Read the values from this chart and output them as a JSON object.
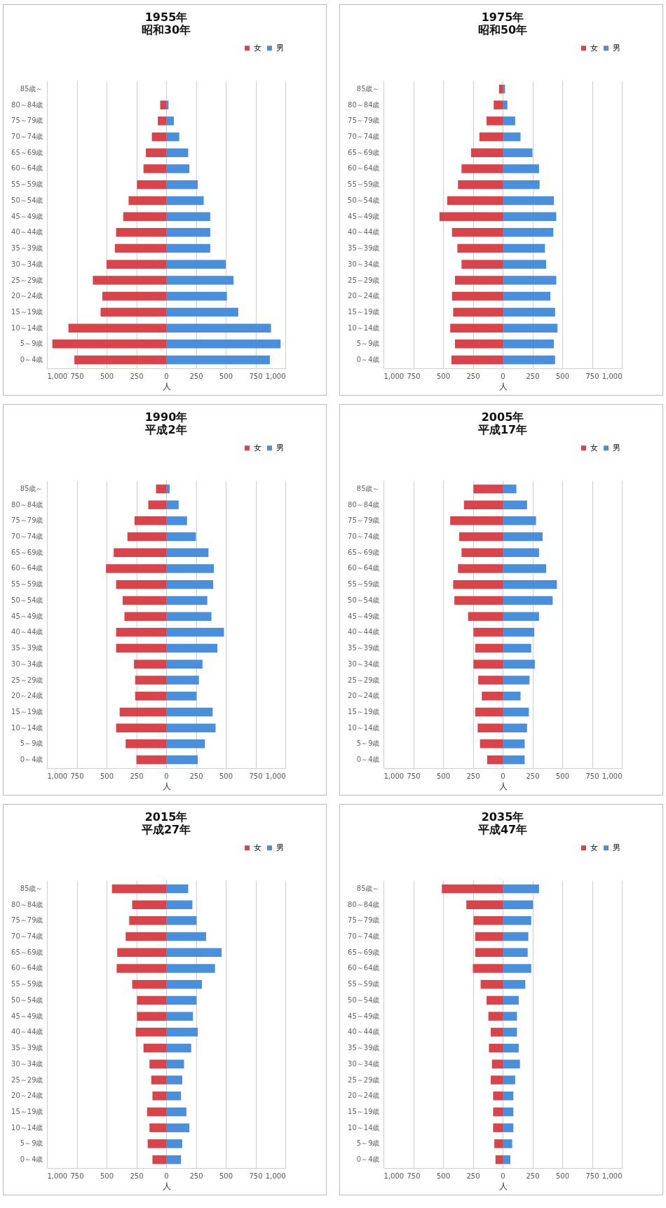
{
  "chart_data": [
    {
      "type": "bar",
      "stacked": true,
      "orientation": "horizontal",
      "title": "1955年",
      "subtitle": "昭和30年",
      "xlabel": "人",
      "grid": "x",
      "legend": "top right",
      "xlim": [
        -1000,
        1000
      ],
      "xticks": [
        {
          "value": -1000,
          "label": "1,000"
        },
        {
          "value": -750,
          "label": "750"
        },
        {
          "value": -500,
          "label": "500"
        },
        {
          "value": -250,
          "label": "250"
        },
        0,
        250,
        500,
        750,
        {
          "value": 1000,
          "label": "1,000"
        }
      ],
      "categories": [
        "85歳～",
        "80～84歳",
        "75～79歳",
        "70～74歳",
        "65～69歳",
        "60～64歳",
        "55～59歳",
        "50～54歳",
        "45～49歳",
        "40～44歳",
        "35～39歳",
        "30～34歳",
        "25～29歳",
        "20～24歳",
        "15～19歳",
        "10～14歳",
        "5～9歳",
        "0～4歳"
      ],
      "series": [
        {
          "name": "女",
          "color": "#d9434a",
          "values": [
            0,
            -50,
            -70,
            -120,
            -170,
            -190,
            -245,
            -315,
            -360,
            -420,
            -430,
            -500,
            -615,
            -535,
            -550,
            -820,
            -955,
            -770
          ]
        },
        {
          "name": "男",
          "color": "#4a8fdb",
          "values": [
            0,
            20,
            65,
            110,
            185,
            195,
            265,
            315,
            370,
            370,
            370,
            500,
            565,
            510,
            605,
            880,
            960,
            870
          ]
        }
      ]
    },
    {
      "type": "bar",
      "stacked": true,
      "orientation": "horizontal",
      "title": "1975年",
      "subtitle": "昭和50年",
      "xlabel": "人",
      "grid": "x",
      "legend": "top right",
      "xlim": [
        -1000,
        1000
      ],
      "xticks": [
        {
          "value": -1000,
          "label": "1,000"
        },
        {
          "value": -750,
          "label": "750"
        },
        {
          "value": -500,
          "label": "500"
        },
        {
          "value": -250,
          "label": "250"
        },
        0,
        250,
        500,
        750,
        {
          "value": 1000,
          "label": "1,000"
        }
      ],
      "categories": [
        "85歳～",
        "80～84歳",
        "75～79歳",
        "70～74歳",
        "65～69歳",
        "60～64歳",
        "55～59歳",
        "50～54歳",
        "45～49歳",
        "40～44歳",
        "35～39歳",
        "30～34歳",
        "25～29歳",
        "20～24歳",
        "15～19歳",
        "10～14歳",
        "5～9歳",
        "0～4歳"
      ],
      "series": [
        {
          "name": "女",
          "color": "#d9434a",
          "values": [
            -30,
            -75,
            -135,
            -195,
            -265,
            -345,
            -375,
            -465,
            -530,
            -425,
            -380,
            -345,
            -400,
            -425,
            -415,
            -440,
            -400,
            -430
          ]
        },
        {
          "name": "男",
          "color": "#4a8fdb",
          "values": [
            20,
            40,
            105,
            150,
            250,
            305,
            310,
            430,
            450,
            425,
            355,
            365,
            450,
            400,
            440,
            460,
            430,
            440
          ]
        }
      ]
    },
    {
      "type": "bar",
      "stacked": true,
      "orientation": "horizontal",
      "title": "1990年",
      "subtitle": "平成2年",
      "xlabel": "人",
      "grid": "x",
      "legend": "top right",
      "xlim": [
        -1000,
        1000
      ],
      "xticks": [
        {
          "value": -1000,
          "label": "1,000"
        },
        {
          "value": -750,
          "label": "750"
        },
        {
          "value": -500,
          "label": "500"
        },
        {
          "value": -250,
          "label": "250"
        },
        0,
        250,
        500,
        750,
        {
          "value": 1000,
          "label": "1,000"
        }
      ],
      "categories": [
        "85歳～",
        "80～84歳",
        "75～79歳",
        "70～74歳",
        "65～69歳",
        "60～64歳",
        "55～59歳",
        "50～54歳",
        "45～49歳",
        "40～44歳",
        "35～39歳",
        "30～34歳",
        "25～29歳",
        "20～24歳",
        "15～19歳",
        "10～14歳",
        "5～9歳",
        "0～4歳"
      ],
      "series": [
        {
          "name": "女",
          "color": "#d9434a",
          "values": [
            -85,
            -150,
            -265,
            -325,
            -440,
            -505,
            -420,
            -365,
            -350,
            -420,
            -420,
            -270,
            -260,
            -260,
            -390,
            -420,
            -340,
            -250
          ]
        },
        {
          "name": "男",
          "color": "#4a8fdb",
          "values": [
            30,
            105,
            175,
            250,
            355,
            400,
            395,
            345,
            380,
            485,
            430,
            305,
            275,
            255,
            390,
            415,
            325,
            265
          ]
        }
      ]
    },
    {
      "type": "bar",
      "stacked": true,
      "orientation": "horizontal",
      "title": "2005年",
      "subtitle": "平成17年",
      "xlabel": "人",
      "grid": "x",
      "legend": "top right",
      "xlim": [
        -1000,
        1000
      ],
      "xticks": [
        {
          "value": -1000,
          "label": "1,000"
        },
        {
          "value": -750,
          "label": "750"
        },
        {
          "value": -500,
          "label": "500"
        },
        {
          "value": -250,
          "label": "250"
        },
        0,
        250,
        500,
        750,
        {
          "value": 1000,
          "label": "1,000"
        }
      ],
      "categories": [
        "85歳～",
        "80～84歳",
        "75～79歳",
        "70～74歳",
        "65～69歳",
        "60～64歳",
        "55～59歳",
        "50～54歳",
        "45～49歳",
        "40～44歳",
        "35～39歳",
        "30～34歳",
        "25～29歳",
        "20～24歳",
        "15～19歳",
        "10～14歳",
        "5～9歳",
        "0～4歳"
      ],
      "series": [
        {
          "name": "女",
          "color": "#d9434a",
          "values": [
            -245,
            -325,
            -440,
            -365,
            -345,
            -375,
            -415,
            -405,
            -290,
            -245,
            -230,
            -245,
            -205,
            -175,
            -230,
            -210,
            -190,
            -130
          ]
        },
        {
          "name": "男",
          "color": "#4a8fdb",
          "values": [
            115,
            205,
            280,
            335,
            305,
            365,
            455,
            420,
            305,
            265,
            240,
            270,
            225,
            150,
            220,
            205,
            185,
            185
          ]
        }
      ]
    },
    {
      "type": "bar",
      "stacked": true,
      "orientation": "horizontal",
      "title": "2015年",
      "subtitle": "平成27年",
      "xlabel": "人",
      "grid": "x",
      "legend": "top right",
      "xlim": [
        -1000,
        1000
      ],
      "xticks": [
        {
          "value": -1000,
          "label": "1,000"
        },
        {
          "value": -750,
          "label": "750"
        },
        {
          "value": -500,
          "label": "500"
        },
        {
          "value": -250,
          "label": "250"
        },
        0,
        250,
        500,
        750,
        {
          "value": 1000,
          "label": "1,000"
        }
      ],
      "categories": [
        "85歳～",
        "80～84歳",
        "75～79歳",
        "70～74歳",
        "65～69歳",
        "60～64歳",
        "55～59歳",
        "50～54歳",
        "45～49歳",
        "40～44歳",
        "35～39歳",
        "30～34歳",
        "25～29歳",
        "20～24歳",
        "15～19歳",
        "10～14歳",
        "5～9歳",
        "0～4歳"
      ],
      "series": [
        {
          "name": "女",
          "color": "#d9434a",
          "values": [
            -455,
            -285,
            -310,
            -340,
            -410,
            -415,
            -285,
            -245,
            -245,
            -255,
            -190,
            -140,
            -125,
            -115,
            -160,
            -140,
            -155,
            -115
          ]
        },
        {
          "name": "男",
          "color": "#4a8fdb",
          "values": [
            185,
            220,
            255,
            335,
            465,
            410,
            300,
            255,
            225,
            265,
            210,
            150,
            135,
            125,
            170,
            195,
            135,
            125
          ]
        }
      ]
    },
    {
      "type": "bar",
      "stacked": true,
      "orientation": "horizontal",
      "title": "2035年",
      "subtitle": "平成47年",
      "xlabel": "人",
      "grid": "x",
      "legend": "top right",
      "xlim": [
        -1000,
        1000
      ],
      "xticks": [
        {
          "value": -1000,
          "label": "1,000"
        },
        {
          "value": -750,
          "label": "750"
        },
        {
          "value": -500,
          "label": "500"
        },
        {
          "value": -250,
          "label": "250"
        },
        0,
        250,
        500,
        750,
        {
          "value": 1000,
          "label": "1,000"
        }
      ],
      "categories": [
        "85歳～",
        "80～84歳",
        "75～79歳",
        "70～74歳",
        "65～69歳",
        "60～64歳",
        "55～59歳",
        "50～54歳",
        "45～49歳",
        "40～44歳",
        "35～39歳",
        "30～34歳",
        "25～29歳",
        "20～24歳",
        "15～19歳",
        "10～14歳",
        "5～9歳",
        "0～4歳"
      ],
      "series": [
        {
          "name": "女",
          "color": "#d9434a",
          "values": [
            -510,
            -305,
            -245,
            -230,
            -230,
            -250,
            -185,
            -135,
            -120,
            -100,
            -115,
            -90,
            -100,
            -80,
            -80,
            -80,
            -70,
            -60
          ]
        },
        {
          "name": "男",
          "color": "#4a8fdb",
          "values": [
            305,
            255,
            240,
            215,
            210,
            240,
            190,
            135,
            120,
            120,
            135,
            145,
            105,
            90,
            90,
            90,
            80,
            65
          ]
        }
      ]
    }
  ]
}
